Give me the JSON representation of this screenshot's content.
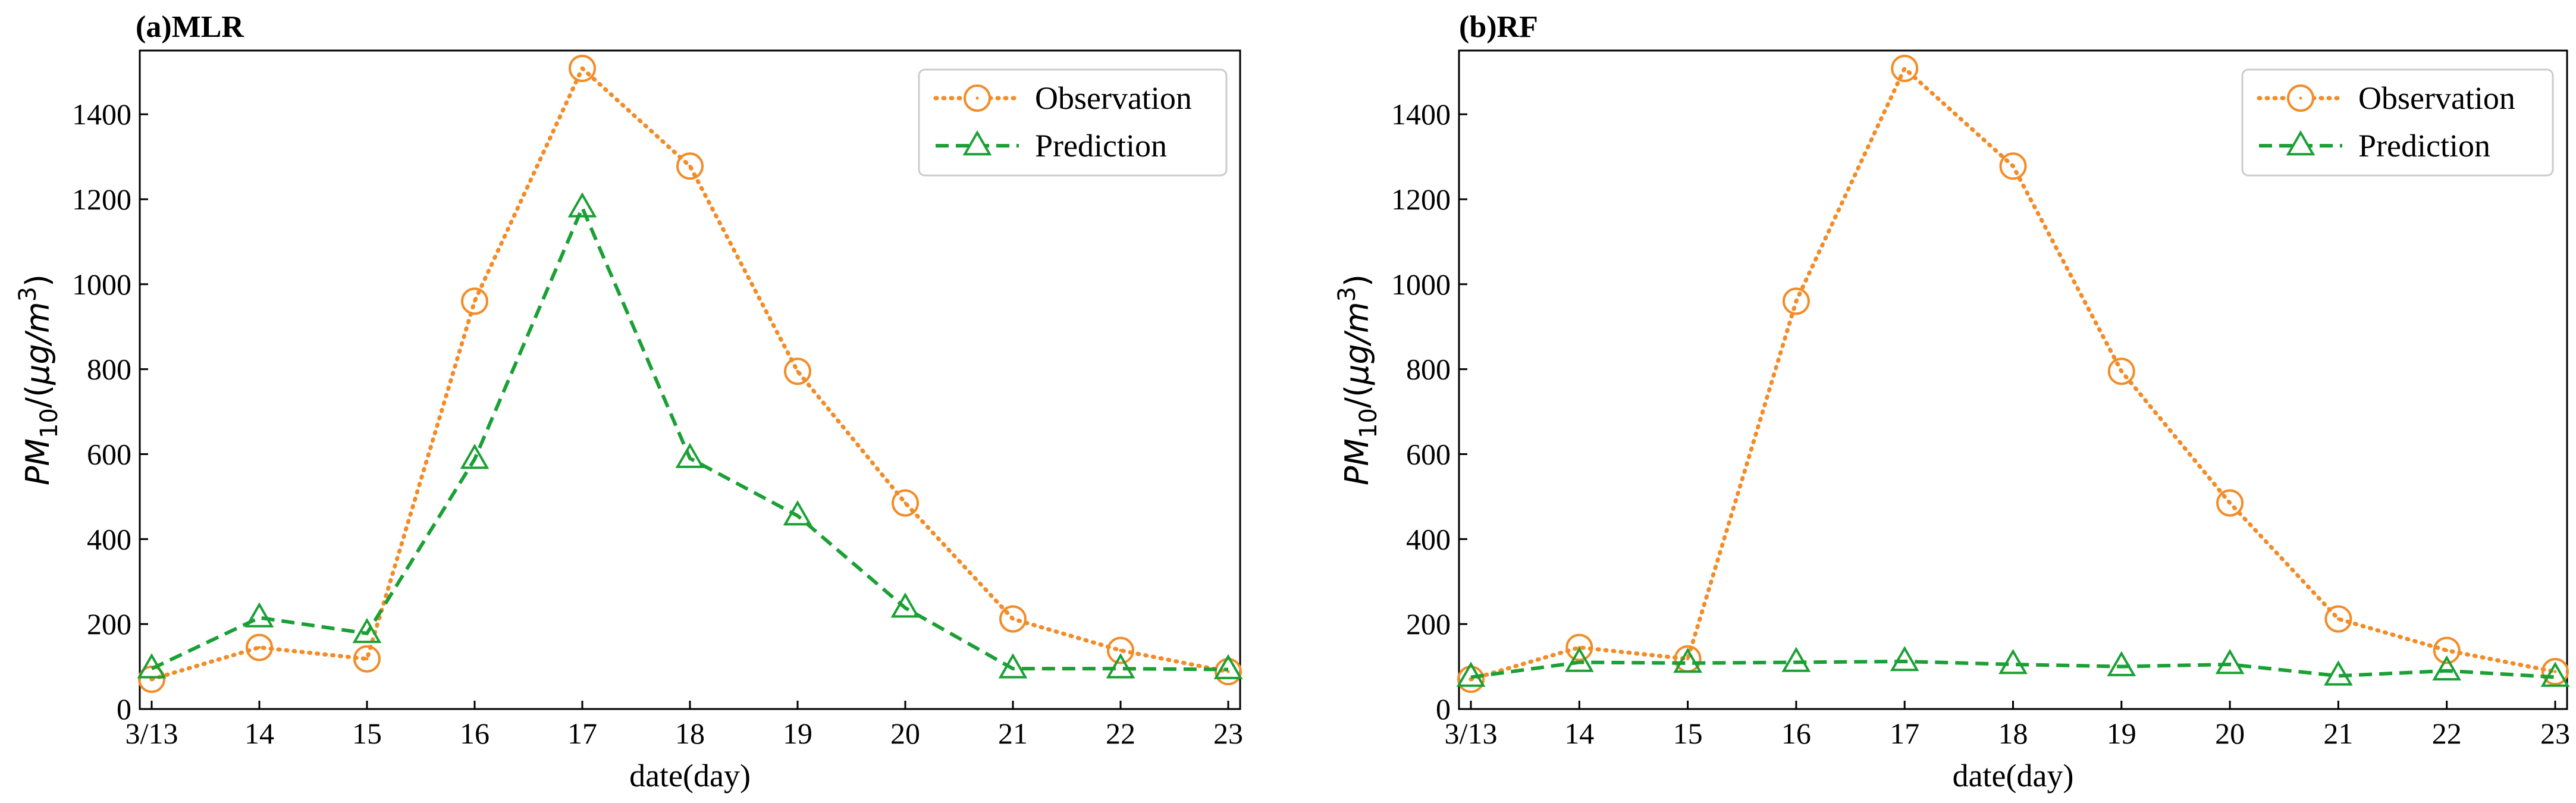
{
  "chart_data": [
    {
      "type": "line",
      "title": "(a)MLR",
      "xlabel": "date(day)",
      "ylabel": {
        "base": "PM",
        "sub": "10",
        "unit_prefix": "/(",
        "unit": "μg/m",
        "sup": "3",
        "unit_suffix": ")"
      },
      "categories": [
        "3/13",
        "14",
        "15",
        "16",
        "17",
        "18",
        "19",
        "20",
        "21",
        "22",
        "23"
      ],
      "ylim": [
        0,
        1550
      ],
      "yticks": [
        0,
        200,
        400,
        600,
        800,
        1000,
        1200,
        1400
      ],
      "legend": "top-right",
      "series": [
        {
          "name": "Observation",
          "color": "#f28c28",
          "style": "dotted",
          "marker": "circle",
          "values": [
            70,
            145,
            118,
            960,
            1508,
            1278,
            795,
            485,
            212,
            138,
            88
          ]
        },
        {
          "name": "Prediction",
          "color": "#1aa034",
          "style": "dashed",
          "marker": "triangle",
          "values": [
            95,
            215,
            178,
            588,
            1180,
            590,
            455,
            238,
            95,
            95,
            93
          ]
        }
      ]
    },
    {
      "type": "line",
      "title": "(b)RF",
      "xlabel": "date(day)",
      "ylabel": {
        "base": "PM",
        "sub": "10",
        "unit_prefix": "/(",
        "unit": "μg/m",
        "sup": "3",
        "unit_suffix": ")"
      },
      "categories": [
        "3/13",
        "14",
        "15",
        "16",
        "17",
        "18",
        "19",
        "20",
        "21",
        "22",
        "23"
      ],
      "ylim": [
        0,
        1550
      ],
      "yticks": [
        0,
        200,
        400,
        600,
        800,
        1000,
        1200,
        1400
      ],
      "legend": "top-right",
      "series": [
        {
          "name": "Observation",
          "color": "#f28c28",
          "style": "dotted",
          "marker": "circle",
          "values": [
            70,
            145,
            118,
            960,
            1508,
            1278,
            795,
            485,
            212,
            138,
            88
          ]
        },
        {
          "name": "Prediction",
          "color": "#1aa034",
          "style": "dashed",
          "marker": "triangle",
          "values": [
            75,
            110,
            108,
            110,
            112,
            105,
            100,
            105,
            78,
            90,
            75
          ]
        }
      ]
    }
  ]
}
